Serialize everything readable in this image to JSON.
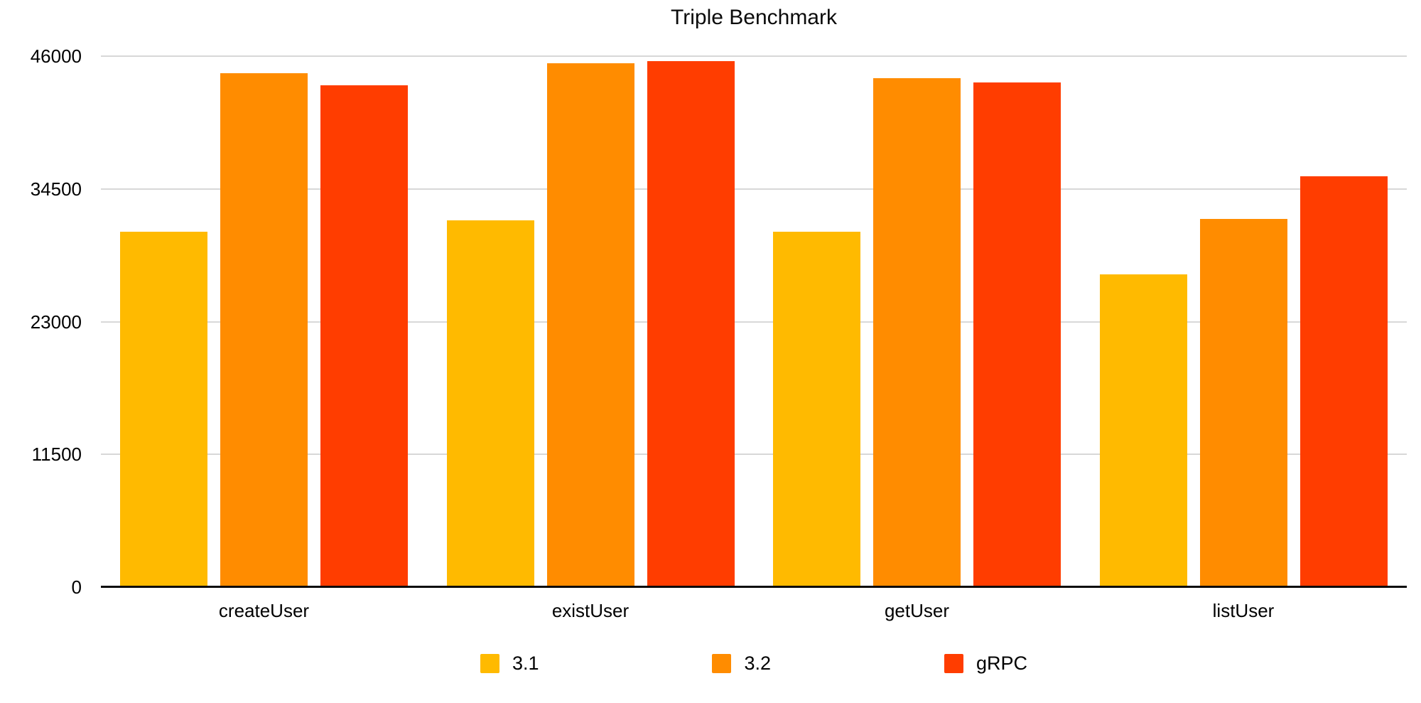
{
  "chart_data": {
    "type": "bar",
    "title": "Triple Benchmark",
    "categories": [
      "createUser",
      "existUser",
      "getUser",
      "listUser"
    ],
    "series": [
      {
        "name": "3.1",
        "color": "#FFBA00",
        "values": [
          30800,
          31800,
          30800,
          27100
        ]
      },
      {
        "name": "3.2",
        "color": "#FF8C00",
        "values": [
          44500,
          45400,
          44100,
          31900
        ]
      },
      {
        "name": "gRPC",
        "color": "#FF3D00",
        "values": [
          43500,
          45600,
          43700,
          35600
        ]
      }
    ],
    "xlabel": "",
    "ylabel": "",
    "y_ticks": [
      0,
      11500,
      23000,
      34500,
      46000
    ],
    "ylim": [
      0,
      46000
    ],
    "grid": true,
    "legend_position": "bottom",
    "gridline_color": "#D8D8D8",
    "axis_line_color": "#0A0A0A",
    "text_color": "#000000"
  }
}
